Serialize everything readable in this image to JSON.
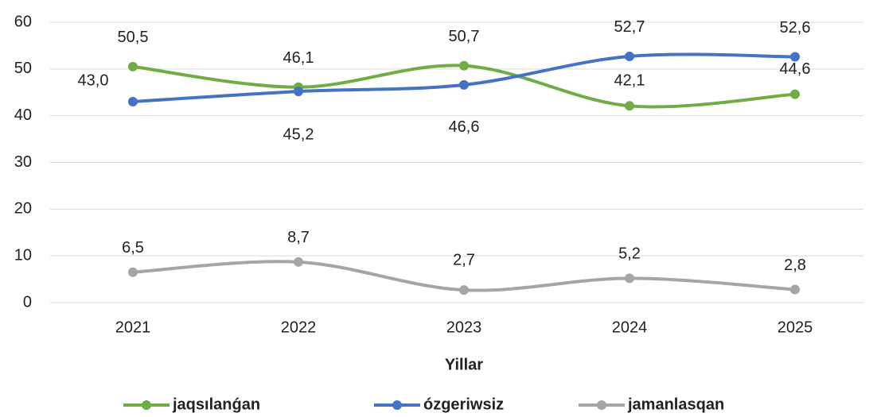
{
  "chart_data": {
    "type": "line",
    "x_label": "Yillar",
    "categories": [
      "2021",
      "2022",
      "2023",
      "2024",
      "2025"
    ],
    "series": [
      {
        "name": "jaqsılanǵan",
        "color": "#70ad47",
        "values": [
          50.5,
          46.1,
          50.7,
          42.1,
          44.6
        ],
        "value_labels": [
          "50,5",
          "46,1",
          "50,7",
          "42,1",
          "44,6"
        ]
      },
      {
        "name": "ózgeriwsiz",
        "color": "#4472c4",
        "values": [
          43.0,
          45.2,
          46.6,
          52.7,
          52.6
        ],
        "value_labels": [
          "43,0",
          "45,2",
          "46,6",
          "52,7",
          "52,6"
        ]
      },
      {
        "name": "jamanlasqan",
        "color": "#a5a5a5",
        "values": [
          6.5,
          8.7,
          2.7,
          5.2,
          2.8
        ],
        "value_labels": [
          "6,5",
          "8,7",
          "2,7",
          "5,2",
          "2,8"
        ]
      }
    ],
    "ylim": [
      0,
      60
    ],
    "yticks": [
      0,
      10,
      20,
      30,
      40,
      50,
      60
    ],
    "grid": true,
    "smooth": true,
    "legend": "bottom"
  }
}
